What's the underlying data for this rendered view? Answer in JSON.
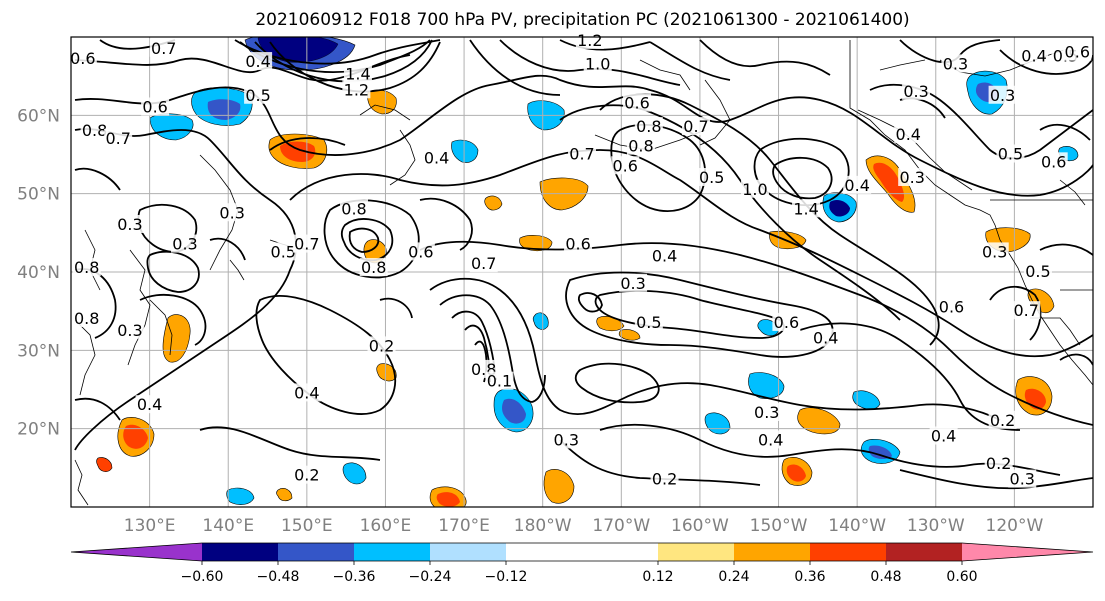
{
  "title": "2021060912 F018 700 hPa PV, precipitation PC (2021061300 - 2021061400)",
  "map": {
    "lat_range": [
      10,
      70
    ],
    "lon_range_east": [
      120,
      250
    ],
    "lat_labels": [
      {
        "lat": 60,
        "text": "60°N"
      },
      {
        "lat": 50,
        "text": "50°N"
      },
      {
        "lat": 40,
        "text": "40°N"
      },
      {
        "lat": 30,
        "text": "30°N"
      },
      {
        "lat": 20,
        "text": "20°N"
      }
    ],
    "lon_labels": [
      {
        "lon": 130,
        "text": "130°E"
      },
      {
        "lon": 140,
        "text": "140°E"
      },
      {
        "lon": 150,
        "text": "150°E"
      },
      {
        "lon": 160,
        "text": "160°E"
      },
      {
        "lon": 170,
        "text": "170°E"
      },
      {
        "lon": 180,
        "text": "180°W"
      },
      {
        "lon": 190,
        "text": "170°W"
      },
      {
        "lon": 200,
        "text": "160°W"
      },
      {
        "lon": 210,
        "text": "150°W"
      },
      {
        "lon": 220,
        "text": "140°W"
      },
      {
        "lon": 230,
        "text": "130°W"
      },
      {
        "lon": 240,
        "text": "120°W"
      }
    ],
    "grid": true
  },
  "colorbar": {
    "colors": [
      "#9932cc",
      "#000080",
      "#3456c8",
      "#00bfff",
      "#b0e0ff",
      "#ffffff",
      "#ffe680",
      "#ffa500",
      "#ff4000",
      "#b22222",
      "#ff88aa"
    ],
    "ticks": [
      {
        "value": -0.6,
        "text": "−0.60"
      },
      {
        "value": -0.48,
        "text": "−0.48"
      },
      {
        "value": -0.36,
        "text": "−0.36"
      },
      {
        "value": -0.24,
        "text": "−0.24"
      },
      {
        "value": -0.12,
        "text": "−0.12"
      },
      {
        "value": 0.12,
        "text": "0.12"
      },
      {
        "value": 0.24,
        "text": "0.24"
      },
      {
        "value": 0.36,
        "text": "0.36"
      },
      {
        "value": 0.48,
        "text": "0.48"
      },
      {
        "value": 0.6,
        "text": "0.60"
      }
    ]
  },
  "pv_labels": [
    {
      "text": "0.7",
      "lon": 131.8,
      "lat": 68.5
    },
    {
      "text": "0.6",
      "lon": 121.5,
      "lat": 67.2
    },
    {
      "text": "0.4",
      "lon": 143.8,
      "lat": 66.8
    },
    {
      "text": "1.4",
      "lon": 156.5,
      "lat": 65.2
    },
    {
      "text": "1.2",
      "lon": 156.3,
      "lat": 63.2
    },
    {
      "text": "0.5",
      "lon": 143.8,
      "lat": 62.5
    },
    {
      "text": "0.6",
      "lon": 130.7,
      "lat": 61.0
    },
    {
      "text": "0.8",
      "lon": 123.0,
      "lat": 58.0
    },
    {
      "text": "0.7",
      "lon": 126.0,
      "lat": 57.0
    },
    {
      "text": "0.4",
      "lon": 166.5,
      "lat": 54.5
    },
    {
      "text": "0.6",
      "lon": 192.0,
      "lat": 61.5
    },
    {
      "text": "0.8",
      "lon": 193.5,
      "lat": 58.5
    },
    {
      "text": "0.7",
      "lon": 199.5,
      "lat": 58.5
    },
    {
      "text": "1.2",
      "lon": 186.0,
      "lat": 69.5
    },
    {
      "text": "1.0",
      "lon": 187.0,
      "lat": 66.5
    },
    {
      "text": "0.8",
      "lon": 192.5,
      "lat": 56.0
    },
    {
      "text": "0.7",
      "lon": 185.0,
      "lat": 55.0
    },
    {
      "text": "0.6",
      "lon": 190.5,
      "lat": 53.5
    },
    {
      "text": "0.5",
      "lon": 201.5,
      "lat": 52.0
    },
    {
      "text": "1.0",
      "lon": 207.0,
      "lat": 50.5
    },
    {
      "text": "1.4",
      "lon": 213.5,
      "lat": 48.0
    },
    {
      "text": "0.3",
      "lon": 227.5,
      "lat": 63.0
    },
    {
      "text": "0.3",
      "lon": 232.5,
      "lat": 66.5
    },
    {
      "text": "0.3",
      "lon": 238.5,
      "lat": 62.5
    },
    {
      "text": "0.4",
      "lon": 226.5,
      "lat": 57.5
    },
    {
      "text": "0.5",
      "lon": 239.5,
      "lat": 55.0
    },
    {
      "text": "0.4",
      "lon": 242.5,
      "lat": 67.5
    },
    {
      "text": "0.5",
      "lon": 246.5,
      "lat": 67.5
    },
    {
      "text": "0.6",
      "lon": 248.0,
      "lat": 68.0
    },
    {
      "text": "0.3",
      "lon": 227.0,
      "lat": 52.0
    },
    {
      "text": "0.6",
      "lon": 245.0,
      "lat": 54.0
    },
    {
      "text": "0.3",
      "lon": 237.5,
      "lat": 42.5
    },
    {
      "text": "0.4",
      "lon": 220.0,
      "lat": 51.0
    },
    {
      "text": "0.5",
      "lon": 243.0,
      "lat": 40.0
    },
    {
      "text": "0.6",
      "lon": 232.0,
      "lat": 35.5
    },
    {
      "text": "0.7",
      "lon": 241.5,
      "lat": 35.0
    },
    {
      "text": "0.3",
      "lon": 127.5,
      "lat": 46.0
    },
    {
      "text": "0.3",
      "lon": 134.5,
      "lat": 43.5
    },
    {
      "text": "0.3",
      "lon": 140.5,
      "lat": 47.5
    },
    {
      "text": "0.5",
      "lon": 147.0,
      "lat": 42.5
    },
    {
      "text": "0.8",
      "lon": 122.0,
      "lat": 40.5
    },
    {
      "text": "0.7",
      "lon": 150.0,
      "lat": 43.5
    },
    {
      "text": "0.8",
      "lon": 156.0,
      "lat": 48.0
    },
    {
      "text": "0.6",
      "lon": 164.5,
      "lat": 42.5
    },
    {
      "text": "0.8",
      "lon": 158.5,
      "lat": 40.5
    },
    {
      "text": "0.8",
      "lon": 122.0,
      "lat": 34.0
    },
    {
      "text": "0.3",
      "lon": 127.5,
      "lat": 32.5
    },
    {
      "text": "0.2",
      "lon": 159.5,
      "lat": 30.5
    },
    {
      "text": "0.4",
      "lon": 150.0,
      "lat": 24.5
    },
    {
      "text": "0.4",
      "lon": 130.0,
      "lat": 23.0
    },
    {
      "text": "0.2",
      "lon": 150.0,
      "lat": 14.0
    },
    {
      "text": "0.7",
      "lon": 172.5,
      "lat": 41.0
    },
    {
      "text": "0.6",
      "lon": 184.5,
      "lat": 43.5
    },
    {
      "text": "0.4",
      "lon": 195.5,
      "lat": 42.0
    },
    {
      "text": "0.3",
      "lon": 191.5,
      "lat": 38.5
    },
    {
      "text": "0.5",
      "lon": 193.5,
      "lat": 33.5
    },
    {
      "text": "0.6",
      "lon": 211.0,
      "lat": 33.5
    },
    {
      "text": "0.4",
      "lon": 216.0,
      "lat": 31.5
    },
    {
      "text": "0.8",
      "lon": 172.5,
      "lat": 27.5
    },
    {
      "text": "0.1",
      "lon": 174.5,
      "lat": 26.0
    },
    {
      "text": "0.3",
      "lon": 183.0,
      "lat": 18.5
    },
    {
      "text": "0.3",
      "lon": 208.5,
      "lat": 22.0
    },
    {
      "text": "0.4",
      "lon": 209.0,
      "lat": 18.5
    },
    {
      "text": "0.2",
      "lon": 195.5,
      "lat": 13.5
    },
    {
      "text": "0.4",
      "lon": 231.0,
      "lat": 19.0
    },
    {
      "text": "0.2",
      "lon": 238.5,
      "lat": 21.0
    },
    {
      "text": "0.2",
      "lon": 238.0,
      "lat": 15.5
    },
    {
      "text": "0.3",
      "lon": 241.0,
      "lat": 13.5
    }
  ]
}
